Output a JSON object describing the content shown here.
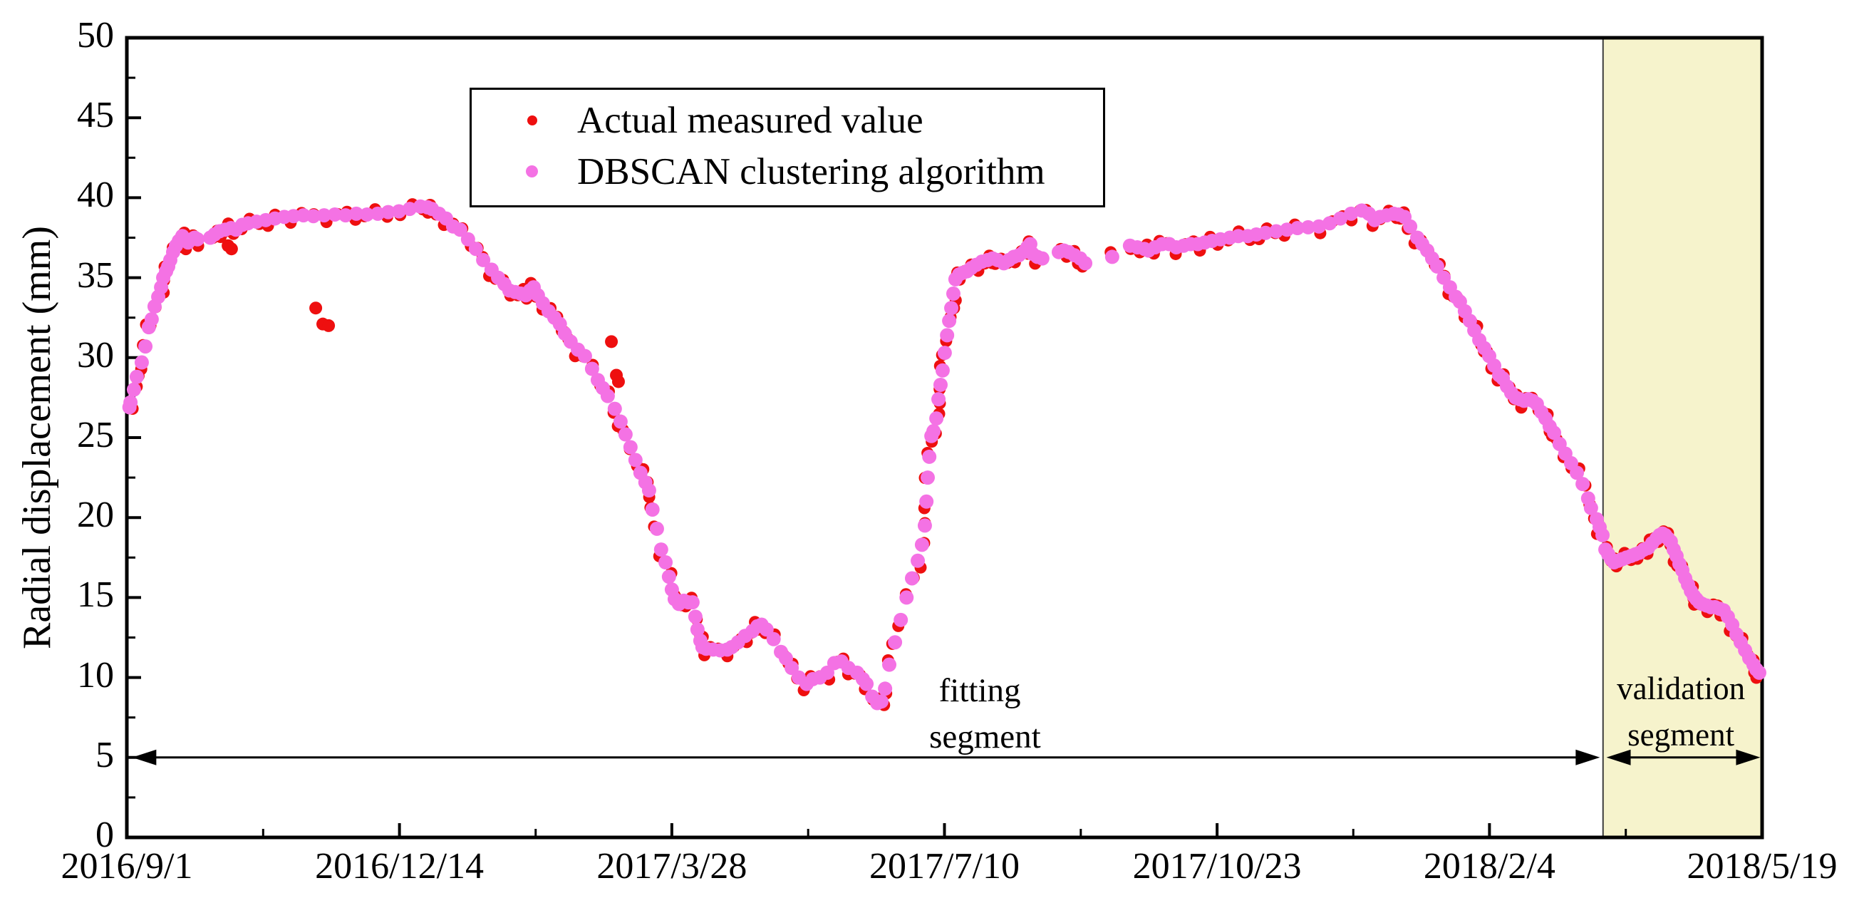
{
  "figure": {
    "background": "#ffffff",
    "frame_color": "#000000",
    "validation_region_fill": "#f6f3cc",
    "validation_region_border": "#3c3c3c"
  },
  "chart_data": {
    "type": "scatter",
    "title": "",
    "xlabel": "",
    "ylabel": "Radial displacement (mm)",
    "ylim": [
      0,
      50
    ],
    "y_ticks": [
      0,
      5,
      10,
      15,
      20,
      25,
      30,
      35,
      40,
      45,
      50
    ],
    "y_tick_labels": [
      "0",
      "5",
      "10",
      "15",
      "20",
      "25",
      "30",
      "35",
      "40",
      "45",
      "50"
    ],
    "y_minor_step": 2.5,
    "x_range_days": [
      0,
      625
    ],
    "x_tick_days": [
      0,
      104.2,
      208.3,
      312.5,
      416.7,
      520.8,
      625
    ],
    "x_tick_labels": [
      "2016/9/1",
      "2016/12/14",
      "2017/3/28",
      "2017/7/10",
      "2017/10/23",
      "2018/2/4",
      "2018/5/19"
    ],
    "grid": false,
    "legend_position": "upper-left-inside",
    "validation_start_day": 564.2,
    "series": [
      {
        "name": "Actual measured value",
        "color": "#ee0f0f",
        "marker_radius": 8.5,
        "points_ref": "curve_points",
        "extra_points_ref": "outliers_actual_only"
      },
      {
        "name": "DBSCAN clustering algorithm",
        "color": "#f472e4",
        "marker_radius": 10,
        "points_ref": "curve_points"
      }
    ],
    "curve_points": [
      [
        1,
        26.9
      ],
      [
        1.4,
        27.2
      ],
      [
        2.7,
        28
      ],
      [
        3.8,
        28.8
      ],
      [
        5.7,
        29.7
      ],
      [
        7.1,
        30.7
      ],
      [
        8.4,
        31.9
      ],
      [
        9.5,
        32.4
      ],
      [
        10.6,
        33.2
      ],
      [
        12,
        33.8
      ],
      [
        13.1,
        34.4
      ],
      [
        13.9,
        35
      ],
      [
        15,
        35.4
      ],
      [
        15.8,
        35.7
      ],
      [
        16.6,
        36.1
      ],
      [
        17.7,
        36.6
      ],
      [
        18.8,
        37
      ],
      [
        19.9,
        37.3
      ],
      [
        21.2,
        37.6
      ],
      [
        22.3,
        37.4
      ],
      [
        23.4,
        37.2
      ],
      [
        24.8,
        37.4
      ],
      [
        25.9,
        37.5
      ],
      [
        27,
        37.4
      ],
      [
        31.9,
        37.5
      ],
      [
        33.5,
        37.7
      ],
      [
        35.4,
        37.9
      ],
      [
        37.6,
        38
      ],
      [
        39.8,
        38.1
      ],
      [
        41.7,
        38
      ],
      [
        44.1,
        38.3
      ],
      [
        46.3,
        38.4
      ],
      [
        49.6,
        38.5
      ],
      [
        53.1,
        38.6
      ],
      [
        56.6,
        38.7
      ],
      [
        60.2,
        38.8
      ],
      [
        63.7,
        38.85
      ],
      [
        67.5,
        38.9
      ],
      [
        71.3,
        38.85
      ],
      [
        75.4,
        38.9
      ],
      [
        79.5,
        38.95
      ],
      [
        83.6,
        38.9
      ],
      [
        87.7,
        39
      ],
      [
        91.8,
        38.95
      ],
      [
        95.9,
        39
      ],
      [
        99.9,
        39.1
      ],
      [
        104,
        39.15
      ],
      [
        108.1,
        39.3
      ],
      [
        112.2,
        39.45
      ],
      [
        114.9,
        39.4
      ],
      [
        116.6,
        39.3
      ],
      [
        119.3,
        39
      ],
      [
        122,
        38.7
      ],
      [
        124.7,
        38.2
      ],
      [
        127.4,
        38
      ],
      [
        130.4,
        37.4
      ],
      [
        133.4,
        36.8
      ],
      [
        136.2,
        36.1
      ],
      [
        139.4,
        35.5
      ],
      [
        141.9,
        35
      ],
      [
        144.3,
        34.6
      ],
      [
        146.2,
        34.2
      ],
      [
        148.4,
        34.1
      ],
      [
        150.6,
        34
      ],
      [
        152.5,
        33.9
      ],
      [
        154.1,
        34.2
      ],
      [
        155.5,
        34.4
      ],
      [
        157.1,
        33.9
      ],
      [
        159,
        33.4
      ],
      [
        161.2,
        32.9
      ],
      [
        163.4,
        32.5
      ],
      [
        165.5,
        32.1
      ],
      [
        167.4,
        31.5
      ],
      [
        169.6,
        31
      ],
      [
        172.4,
        30.5
      ],
      [
        175.1,
        30.1
      ],
      [
        177.8,
        29.3
      ],
      [
        180,
        28.6
      ],
      [
        181.9,
        28.1
      ],
      [
        183.8,
        27.6
      ],
      [
        186.5,
        26.8
      ],
      [
        188.7,
        26
      ],
      [
        190.6,
        25.2
      ],
      [
        192.5,
        24.4
      ],
      [
        194.4,
        23.6
      ],
      [
        196.3,
        22.8
      ],
      [
        198.2,
        22.2
      ],
      [
        199.6,
        21.7
      ],
      [
        200.9,
        20.5
      ],
      [
        202.6,
        19.3
      ],
      [
        204.2,
        18
      ],
      [
        205.9,
        17.2
      ],
      [
        207.2,
        16.3
      ],
      [
        208.3,
        15.5
      ],
      [
        209.4,
        14.9
      ],
      [
        211,
        14.6
      ],
      [
        212.9,
        14.8
      ],
      [
        214.6,
        14.7
      ],
      [
        216.2,
        14.7
      ],
      [
        217.3,
        13.8
      ],
      [
        218.1,
        13
      ],
      [
        219.2,
        12.3
      ],
      [
        220,
        11.9
      ],
      [
        221.4,
        11.8
      ],
      [
        224.1,
        11.75
      ],
      [
        226.8,
        11.7
      ],
      [
        229.5,
        11.75
      ],
      [
        231.2,
        11.9
      ],
      [
        233.6,
        12.2
      ],
      [
        236.3,
        12.6
      ],
      [
        239.1,
        12.9
      ],
      [
        241,
        13.2
      ],
      [
        242.6,
        13.3
      ],
      [
        244.5,
        13
      ],
      [
        247.2,
        12.4
      ],
      [
        250,
        11.6
      ],
      [
        251.9,
        11.2
      ],
      [
        254.1,
        10.6
      ],
      [
        256.8,
        10
      ],
      [
        259.8,
        9.6
      ],
      [
        262.2,
        9.9
      ],
      [
        264.9,
        10
      ],
      [
        267.7,
        10.3
      ],
      [
        270.4,
        10.9
      ],
      [
        273.1,
        11
      ],
      [
        275.8,
        10.6
      ],
      [
        279.1,
        10.3
      ],
      [
        281.3,
        9.9
      ],
      [
        282.7,
        9.6
      ],
      [
        284.9,
        8.8
      ],
      [
        286.8,
        8.4
      ],
      [
        288.4,
        8.5
      ],
      [
        289.8,
        9.3
      ],
      [
        291.4,
        10.8
      ],
      [
        293.6,
        12.2
      ],
      [
        295.8,
        13.6
      ],
      [
        298,
        15
      ],
      [
        300.1,
        16.2
      ],
      [
        302.3,
        17.3
      ],
      [
        303.9,
        18.3
      ],
      [
        305,
        19.5
      ],
      [
        305.6,
        21
      ],
      [
        306.1,
        22.5
      ],
      [
        306.7,
        23.8
      ],
      [
        307.5,
        25.1
      ],
      [
        308.3,
        25.4
      ],
      [
        309.4,
        26.2
      ],
      [
        310.2,
        27.4
      ],
      [
        311,
        28.3
      ],
      [
        311.8,
        29.2
      ],
      [
        312.6,
        30.3
      ],
      [
        313.5,
        31.4
      ],
      [
        314.3,
        32.3
      ],
      [
        315.1,
        33.1
      ],
      [
        315.9,
        34
      ],
      [
        316.7,
        34.9
      ],
      [
        318.1,
        35.2
      ],
      [
        319.4,
        35.3
      ],
      [
        321.1,
        35.4
      ],
      [
        322.7,
        35.6
      ],
      [
        324.6,
        35.8
      ],
      [
        326.8,
        36
      ],
      [
        329,
        36.1
      ],
      [
        330.9,
        36.2
      ],
      [
        332.8,
        36.1
      ],
      [
        335.2,
        35.9
      ],
      [
        337.1,
        36.1
      ],
      [
        339,
        36.3
      ],
      [
        340.9,
        36.4
      ],
      [
        342.8,
        36.6
      ],
      [
        344.2,
        36.9
      ],
      [
        345.3,
        37.1
      ],
      [
        346.1,
        36.5
      ],
      [
        348,
        36.3
      ],
      [
        349.9,
        36.2
      ],
      [
        356.2,
        36.6
      ],
      [
        358.1,
        36.7
      ],
      [
        360,
        36.6
      ],
      [
        362.2,
        36.4
      ],
      [
        364.4,
        36.2
      ],
      [
        366.3,
        35.9
      ],
      [
        376.6,
        36.3
      ],
      [
        383.4,
        37
      ],
      [
        386.2,
        36.9
      ],
      [
        388.9,
        36.8
      ],
      [
        390.5,
        36.7
      ],
      [
        393,
        36.9
      ],
      [
        395.7,
        37.1
      ],
      [
        398.4,
        37.1
      ],
      [
        401.1,
        36.9
      ],
      [
        403.9,
        37
      ],
      [
        406.6,
        37.1
      ],
      [
        409.3,
        37.1
      ],
      [
        412,
        37.2
      ],
      [
        414.8,
        37.3
      ],
      [
        418,
        37.4
      ],
      [
        421.6,
        37.5
      ],
      [
        424.8,
        37.6
      ],
      [
        428.4,
        37.6
      ],
      [
        431.7,
        37.7
      ],
      [
        435.2,
        37.8
      ],
      [
        439.3,
        37.9
      ],
      [
        443.4,
        38
      ],
      [
        447.4,
        38.1
      ],
      [
        451.5,
        38.15
      ],
      [
        455.6,
        38.2
      ],
      [
        459.7,
        38.4
      ],
      [
        463.8,
        38.7
      ],
      [
        467.9,
        39
      ],
      [
        472,
        39.2
      ],
      [
        474.7,
        39
      ],
      [
        476.9,
        38.6
      ],
      [
        479,
        38.8
      ],
      [
        481.5,
        38.9
      ],
      [
        484.2,
        39
      ],
      [
        486.1,
        38.95
      ],
      [
        488.3,
        38.8
      ],
      [
        490.5,
        38.2
      ],
      [
        493.2,
        37.5
      ],
      [
        495.1,
        37.1
      ],
      [
        497,
        36.7
      ],
      [
        498.9,
        36.2
      ],
      [
        500.8,
        35.7
      ],
      [
        503.3,
        35
      ],
      [
        505.7,
        34.4
      ],
      [
        507.9,
        33.8
      ],
      [
        509.5,
        33.5
      ],
      [
        511.4,
        32.9
      ],
      [
        513.3,
        32.3
      ],
      [
        515,
        31.7
      ],
      [
        516.9,
        31.1
      ],
      [
        518.8,
        30.6
      ],
      [
        520.7,
        30.1
      ],
      [
        522.6,
        29.5
      ],
      [
        524.5,
        28.9
      ],
      [
        525.9,
        28.7
      ],
      [
        527.5,
        28.2
      ],
      [
        529.1,
        27.8
      ],
      [
        530.8,
        27.5
      ],
      [
        532.4,
        27.4
      ],
      [
        534,
        27.3
      ],
      [
        535.7,
        27.4
      ],
      [
        537.3,
        27.3
      ],
      [
        538.9,
        27.1
      ],
      [
        540.6,
        26.6
      ],
      [
        542.2,
        26.2
      ],
      [
        543.8,
        25.7
      ],
      [
        545.5,
        25.3
      ],
      [
        547.6,
        24.6
      ],
      [
        549.8,
        24
      ],
      [
        552,
        23.4
      ],
      [
        554.2,
        22.8
      ],
      [
        556.4,
        22.1
      ],
      [
        558.5,
        21.2
      ],
      [
        559.6,
        20.6
      ],
      [
        561.8,
        19.9
      ],
      [
        562.9,
        19.4
      ],
      [
        564,
        18.9
      ],
      [
        565.1,
        18
      ],
      [
        566.2,
        17.7
      ],
      [
        567.3,
        17.4
      ],
      [
        568.4,
        17.2
      ],
      [
        570,
        17.3
      ],
      [
        571.6,
        17.4
      ],
      [
        573.2,
        17.5
      ],
      [
        574.9,
        17.6
      ],
      [
        576.5,
        17.7
      ],
      [
        578.1,
        17.8
      ],
      [
        579.8,
        18
      ],
      [
        581.4,
        18.1
      ],
      [
        583,
        18.4
      ],
      [
        584.7,
        18.7
      ],
      [
        585.8,
        18.9
      ],
      [
        586.9,
        19
      ],
      [
        588,
        18.9
      ],
      [
        589,
        18.7
      ],
      [
        590.1,
        18.5
      ],
      [
        591.2,
        18
      ],
      [
        592.3,
        17.6
      ],
      [
        593.4,
        17.1
      ],
      [
        594.5,
        16.7
      ],
      [
        595.6,
        16.2
      ],
      [
        596.7,
        15.8
      ],
      [
        597.8,
        15.4
      ],
      [
        598.9,
        15.1
      ],
      [
        599.9,
        14.9
      ],
      [
        601,
        14.7
      ],
      [
        602.1,
        14.6
      ],
      [
        603.8,
        14.5
      ],
      [
        605.4,
        14.4
      ],
      [
        607,
        14.4
      ],
      [
        608.7,
        14.3
      ],
      [
        610.3,
        14.2
      ],
      [
        611.9,
        13.8
      ],
      [
        613.6,
        13.3
      ],
      [
        615.2,
        12.7
      ],
      [
        616.8,
        12.2
      ],
      [
        618.5,
        11.7
      ],
      [
        620.1,
        11.2
      ],
      [
        621.7,
        10.8
      ],
      [
        622.8,
        10.5
      ],
      [
        623.9,
        10.3
      ]
    ],
    "outliers_actual_only": [
      [
        38.7,
        37.0
      ],
      [
        40,
        36.8
      ],
      [
        72.2,
        33.1
      ],
      [
        74.9,
        32.1
      ],
      [
        77.1,
        32.0
      ],
      [
        185.2,
        31.0
      ],
      [
        187.1,
        28.9
      ],
      [
        187.9,
        28.5
      ]
    ],
    "annotations": {
      "fitting": {
        "line1": "fitting",
        "line2": "segment",
        "x_day": 326,
        "y1_mm": 9.2,
        "y2_mm": 6.3,
        "arrow": {
          "x1_day": 2,
          "x2_day": 563,
          "y_mm": 5
        }
      },
      "validation": {
        "line1": "validation",
        "line2": "segment",
        "x_day": 594,
        "y1_mm": 9.3,
        "y2_mm": 6.4,
        "arrow": {
          "x1_day": 565.5,
          "x2_day": 624.3,
          "y_mm": 5
        }
      }
    }
  }
}
